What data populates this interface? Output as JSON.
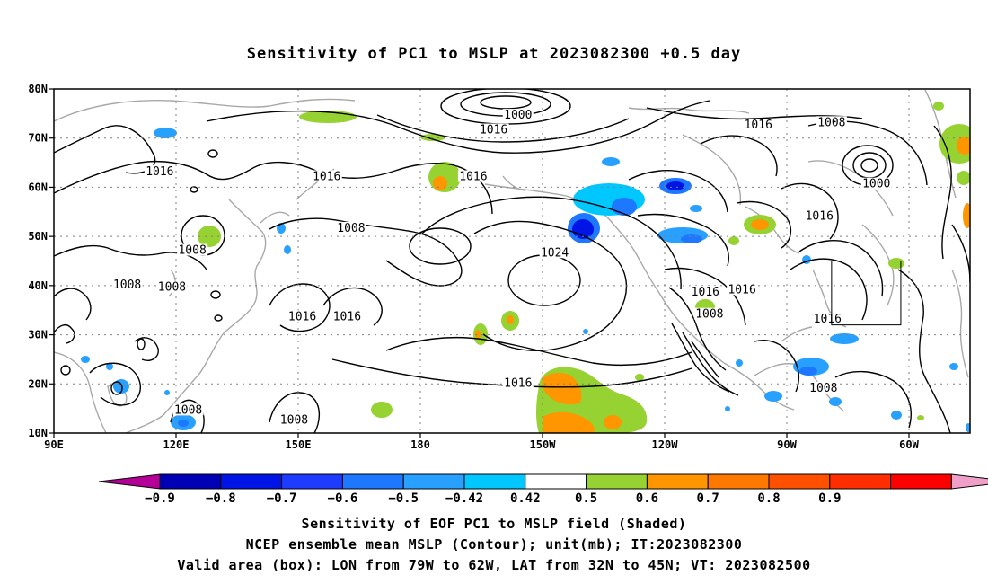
{
  "title": "Sensitivity of PC1 to MSLP at 2023082300 +0.5 day",
  "map": {
    "lon_ticks": [
      {
        "lon": 90,
        "label": "90E"
      },
      {
        "lon": 120,
        "label": "120E"
      },
      {
        "lon": 150,
        "label": "150E"
      },
      {
        "lon": 180,
        "label": "180"
      },
      {
        "lon": 210,
        "label": "150W"
      },
      {
        "lon": 240,
        "label": "120W"
      },
      {
        "lon": 270,
        "label": "90W"
      },
      {
        "lon": 300,
        "label": "60W"
      }
    ],
    "lat_ticks": [
      {
        "lat": 80,
        "label": "80N"
      },
      {
        "lat": 70,
        "label": "70N"
      },
      {
        "lat": 60,
        "label": "60N"
      },
      {
        "lat": 50,
        "label": "50N"
      },
      {
        "lat": 40,
        "label": "40N"
      },
      {
        "lat": 30,
        "label": "30N"
      },
      {
        "lat": 20,
        "label": "20N"
      },
      {
        "lat": 10,
        "label": "10N"
      }
    ],
    "lon_range": [
      90,
      315
    ],
    "lat_range": [
      10,
      80
    ],
    "valid_box": {
      "lon_min": 281,
      "lon_max": 298,
      "lat_min": 32,
      "lat_max": 45
    },
    "contour_labels": [
      {
        "lon": 116,
        "lat": 63,
        "text": "1016"
      },
      {
        "lon": 157,
        "lat": 62,
        "text": "1016"
      },
      {
        "lon": 108,
        "lat": 40,
        "text": "1008"
      },
      {
        "lon": 124,
        "lat": 47,
        "text": "1008"
      },
      {
        "lon": 119,
        "lat": 39.5,
        "text": "1008"
      },
      {
        "lon": 163,
        "lat": 51.5,
        "text": "1008"
      },
      {
        "lon": 151,
        "lat": 33.5,
        "text": "1016"
      },
      {
        "lon": 162,
        "lat": 33.5,
        "text": "1016"
      },
      {
        "lon": 193,
        "lat": 62,
        "text": "1016"
      },
      {
        "lon": 198,
        "lat": 71.5,
        "text": "1016"
      },
      {
        "lon": 204,
        "lat": 74.5,
        "text": "1000"
      },
      {
        "lon": 213,
        "lat": 46.5,
        "text": "1024"
      },
      {
        "lon": 204,
        "lat": 20,
        "text": "1016"
      },
      {
        "lon": 123,
        "lat": 14.5,
        "text": "1008"
      },
      {
        "lon": 149,
        "lat": 12.5,
        "text": "1008"
      },
      {
        "lon": 263,
        "lat": 72.5,
        "text": "1016"
      },
      {
        "lon": 281,
        "lat": 73,
        "text": "1008"
      },
      {
        "lon": 292,
        "lat": 60.5,
        "text": "1000"
      },
      {
        "lon": 278,
        "lat": 54,
        "text": "1016"
      },
      {
        "lon": 250,
        "lat": 38.5,
        "text": "1016"
      },
      {
        "lon": 259,
        "lat": 39,
        "text": "1016"
      },
      {
        "lon": 251,
        "lat": 34,
        "text": "1008"
      },
      {
        "lon": 280,
        "lat": 33,
        "text": "1016"
      },
      {
        "lon": 279,
        "lat": 19,
        "text": "1008"
      }
    ]
  },
  "colorbar": {
    "colors": [
      "#b40096",
      "#0000b4",
      "#0014e6",
      "#1e3cff",
      "#1e78ff",
      "#28a0ff",
      "#00c8ff",
      "#ffffff",
      "#96d232",
      "#ff9600",
      "#ff7800",
      "#ff5000",
      "#ff2d00",
      "#ff0000",
      "#f0a0c8"
    ],
    "labels": [
      "−0.9",
      "−0.8",
      "−0.7",
      "−0.6",
      "−0.5",
      "−0.42",
      "0.42",
      "0.5",
      "0.6",
      "0.7",
      "0.8",
      "0.9"
    ]
  },
  "captions": {
    "line1": "Sensitivity of EOF PC1 to MSLP field (Shaded)",
    "line2": "NCEP ensemble mean MSLP (Contour); unit(mb); IT:2023082300",
    "line3": "Valid area (box): LON from 79W to 62W, LAT from 32N to 45N; VT: 2023082500"
  }
}
